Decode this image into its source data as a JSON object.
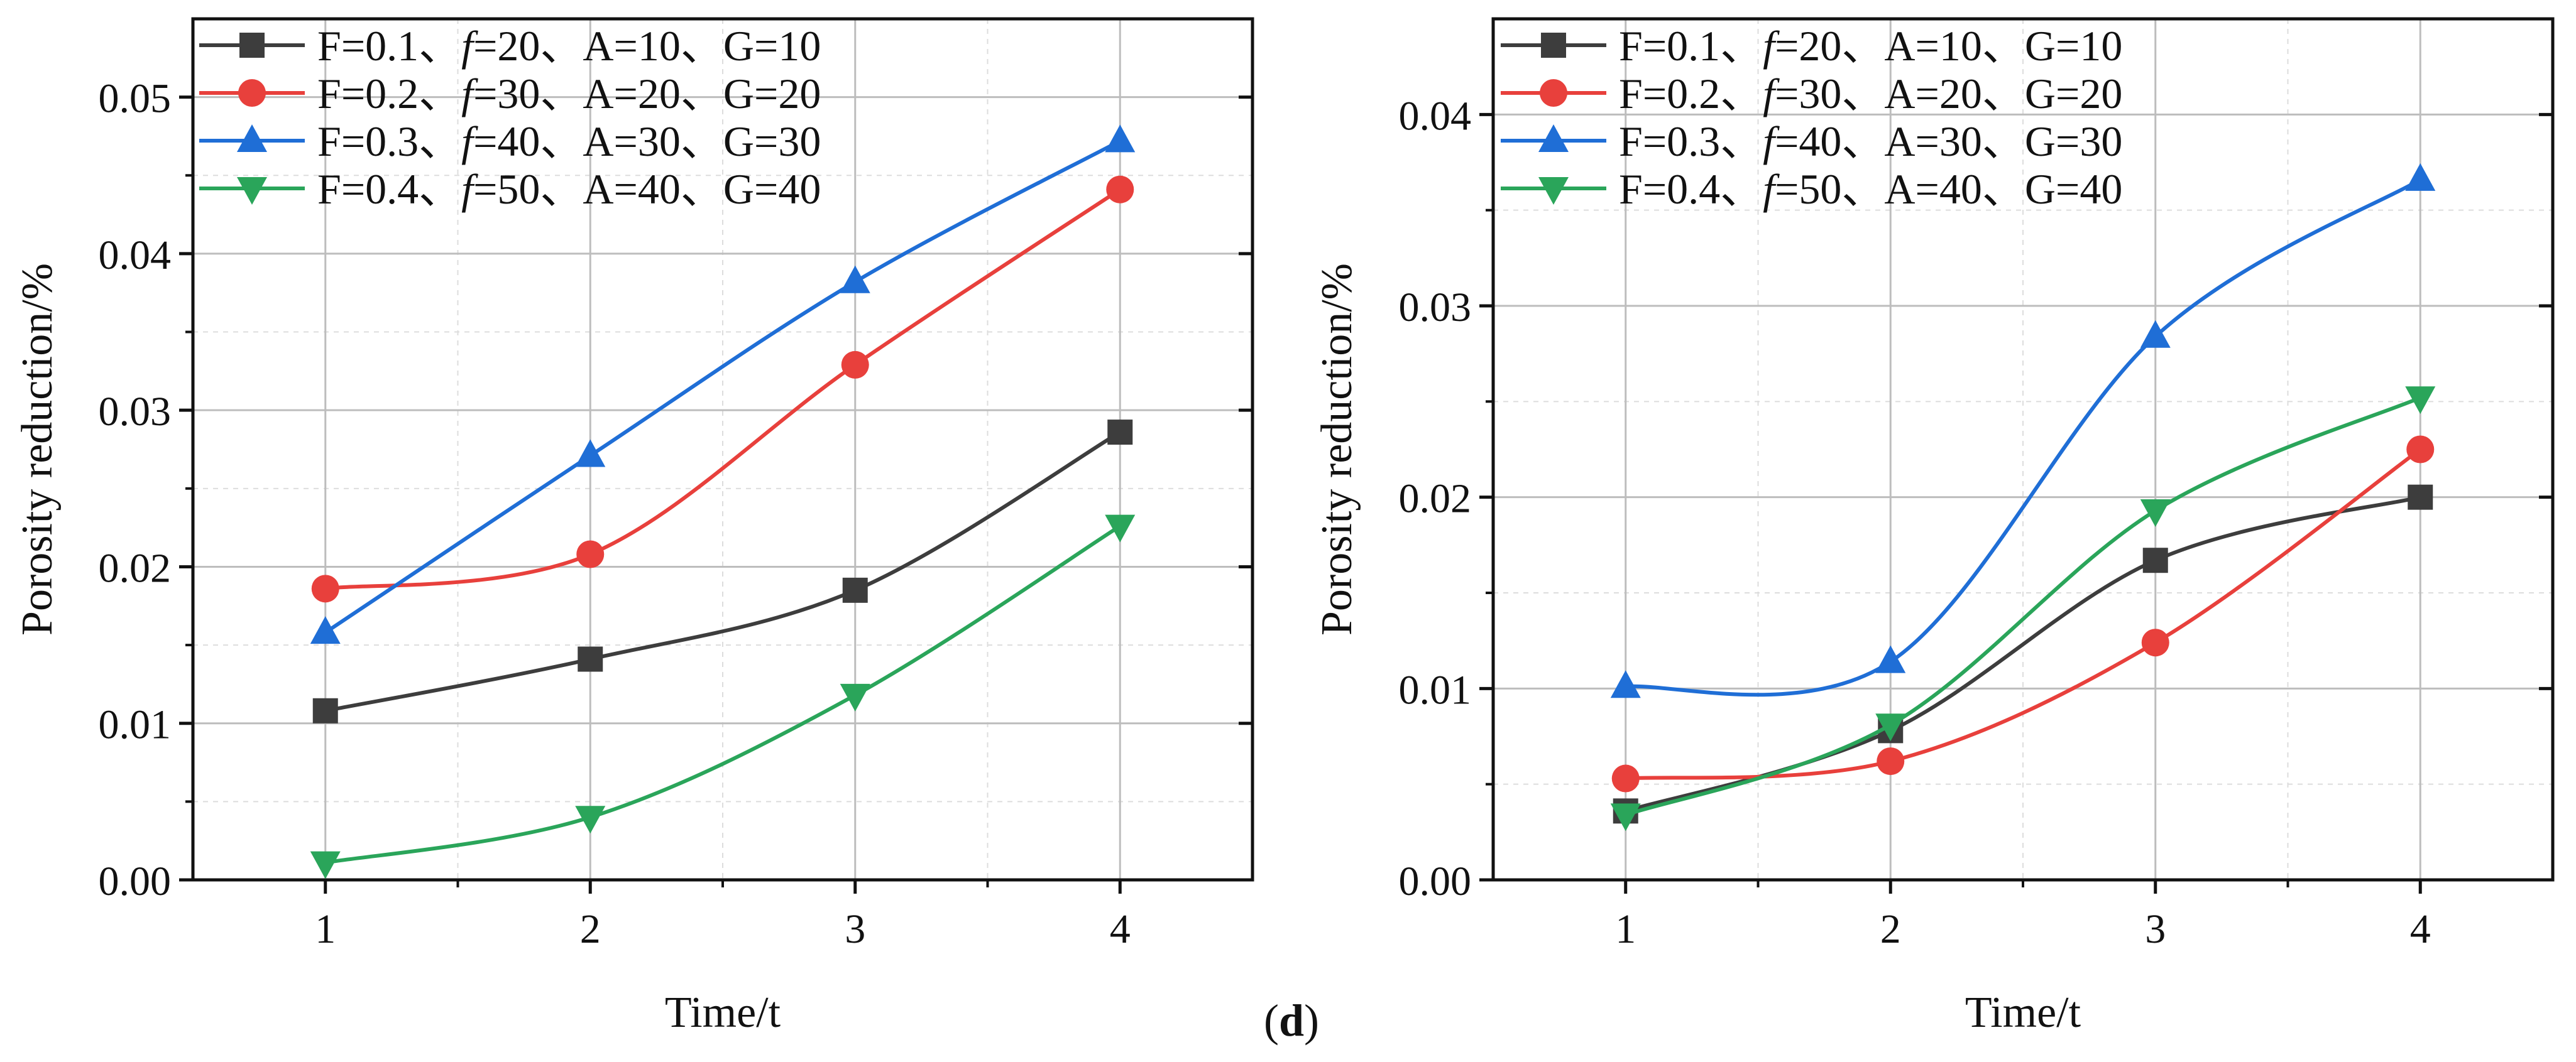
{
  "figure": {
    "caption_open": "(",
    "caption_letter": "d",
    "caption_close": ")"
  },
  "colors": {
    "s1": "#3d3d3d",
    "s2": "#e8403c",
    "s3": "#1f6ed6",
    "s4": "#2aa55a"
  },
  "chart_data": [
    {
      "type": "line",
      "title": "",
      "xlabel": "Time/t",
      "ylabel": "Porosity reduction/%",
      "x": [
        1,
        2,
        3,
        4
      ],
      "xlim": [
        0.5,
        4.5
      ],
      "ylim": [
        0,
        0.055
      ],
      "xticks": [
        "1",
        "2",
        "3",
        "4"
      ],
      "yticks": [
        "0.00",
        "0.01",
        "0.02",
        "0.03",
        "0.04",
        "0.05"
      ],
      "grid": true,
      "legend_position": "top-left",
      "series": [
        {
          "name": "F=0.1、f=20、A=10、G=10",
          "parts": [
            "F=0.1、",
            "f",
            "=20、A=10、G=10"
          ],
          "marker": "square",
          "color_key": "s1",
          "values": [
            0.0108,
            0.0141,
            0.0185,
            0.0286
          ]
        },
        {
          "name": "F=0.2、f=30、A=20、G=20",
          "parts": [
            "F=0.2、",
            "f",
            "=30、A=20、G=20"
          ],
          "marker": "circle",
          "color_key": "s2",
          "values": [
            0.0186,
            0.0208,
            0.0329,
            0.0441
          ]
        },
        {
          "name": "F=0.3、f=40、A=30、G=30",
          "parts": [
            "F=0.3、",
            "f",
            "=40、A=30、G=30"
          ],
          "marker": "triangle-up",
          "color_key": "s3",
          "values": [
            0.0158,
            0.0271,
            0.0382,
            0.0472
          ]
        },
        {
          "name": "F=0.4、f=50、A=40、G=40",
          "parts": [
            "F=0.4、",
            "f",
            "=50、A=40、G=40"
          ],
          "marker": "triangle-down",
          "color_key": "s4",
          "values": [
            0.0011,
            0.004,
            0.0118,
            0.0226
          ]
        }
      ]
    },
    {
      "type": "line",
      "title": "",
      "xlabel": "Time/t",
      "ylabel": "Porosity reduction/%",
      "x": [
        1,
        2,
        3,
        4
      ],
      "xlim": [
        0.5,
        4.5
      ],
      "ylim": [
        0,
        0.045
      ],
      "xticks": [
        "1",
        "2",
        "3",
        "4"
      ],
      "yticks": [
        "0.00",
        "0.01",
        "0.02",
        "0.03",
        "0.04"
      ],
      "grid": true,
      "legend_position": "top-left",
      "series": [
        {
          "name": "F=0.1、f=20、A=10、G=10",
          "parts": [
            "F=0.1、",
            "f",
            "=20、A=10、G=10"
          ],
          "marker": "square",
          "color_key": "s1",
          "values": [
            0.0036,
            0.0078,
            0.0167,
            0.02
          ]
        },
        {
          "name": "F=0.2、f=30、A=20、G=20",
          "parts": [
            "F=0.2、",
            "f",
            "=30、A=20、G=20"
          ],
          "marker": "circle",
          "color_key": "s2",
          "values": [
            0.0053,
            0.0062,
            0.0124,
            0.0225
          ]
        },
        {
          "name": "F=0.3、f=40、A=30、G=30",
          "parts": [
            "F=0.3、",
            "f",
            "=40、A=30、G=30"
          ],
          "marker": "triangle-up",
          "color_key": "s3",
          "values": [
            0.0101,
            0.0114,
            0.0284,
            0.0366
          ]
        },
        {
          "name": "F=0.4、f=50、A=40、G=40",
          "parts": [
            "F=0.4、",
            "f",
            "=50、A=40、G=40"
          ],
          "marker": "triangle-down",
          "color_key": "s4",
          "values": [
            0.0034,
            0.0081,
            0.0193,
            0.0252
          ]
        }
      ]
    }
  ]
}
